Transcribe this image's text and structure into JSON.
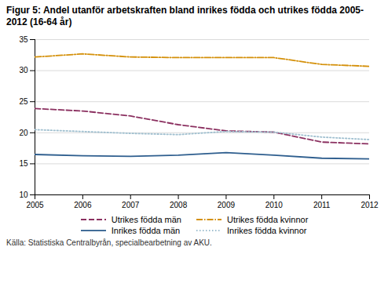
{
  "chart_data": {
    "type": "line",
    "title": "Figur 5: Andel utanför arbetskraften bland inrikes födda och utrikes födda 2005-2012 (16-64 år)",
    "caption": "Källa: Statistiska Centralbyrån, specialbearbetning av AKU.",
    "x": [
      2005,
      2006,
      2007,
      2008,
      2009,
      2010,
      2011,
      2012
    ],
    "series": [
      {
        "name": "Utrikes födda män",
        "color": "#8B3060",
        "line_style": "dashed",
        "values": [
          23.9,
          23.5,
          22.7,
          21.3,
          20.3,
          20.1,
          18.5,
          18.2
        ]
      },
      {
        "name": "Utrikes födda kvinnor",
        "color": "#D4900A",
        "line_style": "dashdot",
        "values": [
          32.2,
          32.7,
          32.2,
          32.1,
          32.1,
          32.1,
          31.0,
          30.7
        ]
      },
      {
        "name": "Inrikes födda män",
        "color": "#2E5E8E",
        "line_style": "solid",
        "values": [
          16.5,
          16.3,
          16.2,
          16.4,
          16.8,
          16.4,
          15.9,
          15.8
        ]
      },
      {
        "name": "Inrikes födda kvinnor",
        "color": "#9FBFCF",
        "line_style": "dotted",
        "values": [
          20.5,
          20.2,
          19.9,
          19.7,
          20.2,
          20.1,
          19.3,
          18.9
        ]
      }
    ],
    "xlim": [
      2005,
      2012
    ],
    "xticks": [
      2005,
      2006,
      2007,
      2008,
      2009,
      2010,
      2011,
      2012
    ],
    "ylim": [
      10,
      35
    ],
    "yticks": [
      10,
      15,
      20,
      25,
      30,
      35
    ],
    "grid": true,
    "legend": "bottom"
  }
}
